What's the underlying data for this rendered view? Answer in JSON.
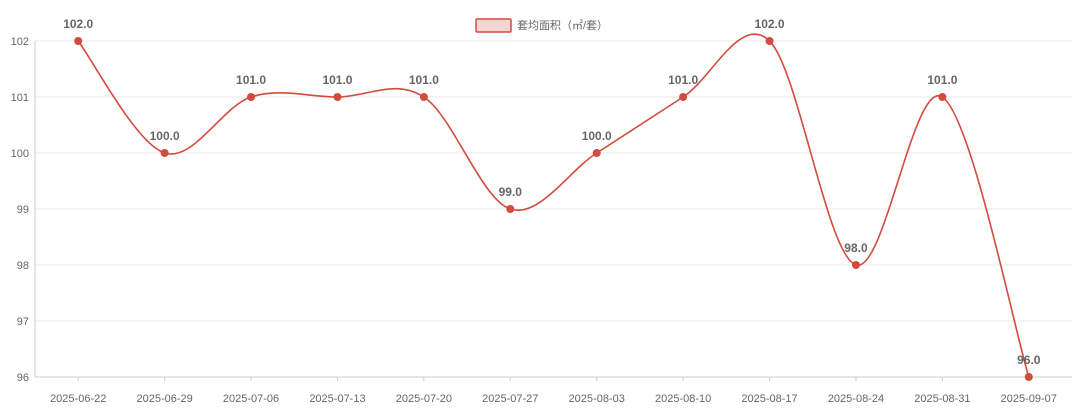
{
  "chart_data": {
    "type": "line",
    "categories": [
      "2025-06-22",
      "2025-06-29",
      "2025-07-06",
      "2025-07-13",
      "2025-07-20",
      "2025-07-27",
      "2025-08-03",
      "2025-08-10",
      "2025-08-17",
      "2025-08-24",
      "2025-08-31",
      "2025-09-07"
    ],
    "series": [
      {
        "name": "套均面积（㎡/套）",
        "values": [
          102,
          100,
          101,
          101,
          101,
          99,
          100,
          101,
          102,
          98,
          101,
          96
        ],
        "labels": [
          "102.0",
          "100.0",
          "101.0",
          "101.0",
          "101.0",
          "99.0",
          "100.0",
          "101.0",
          "102.0",
          "98.0",
          "101.0",
          "96.0"
        ],
        "color": "#d24b3c"
      }
    ],
    "ylim": [
      96,
      102
    ],
    "yticks": [
      "96",
      "97",
      "98",
      "99",
      "100",
      "101",
      "102"
    ],
    "grid": true,
    "legend_position": "top-center",
    "smooth": true
  },
  "colors": {
    "line": "#d24b3c",
    "legend_fill": "#f2d6d3",
    "grid": "#e8e8e8",
    "axis": "#cccccc",
    "text": "#666666"
  }
}
